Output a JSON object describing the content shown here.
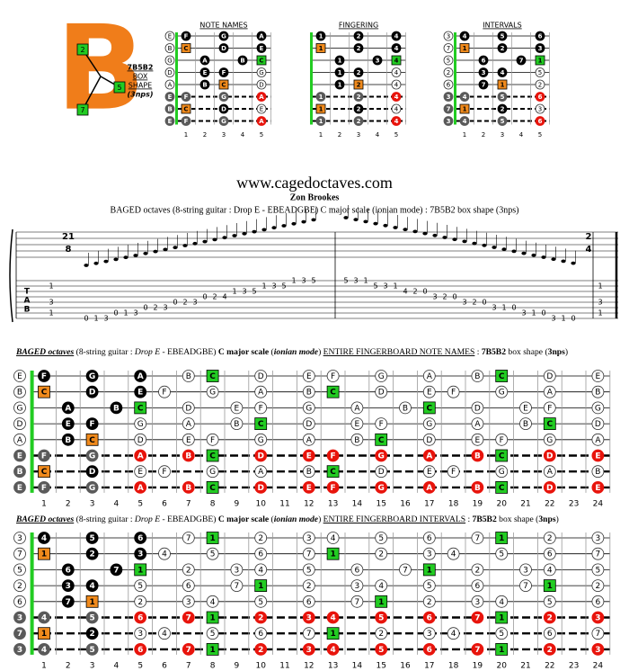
{
  "logo": {
    "letter": "B",
    "squares": [
      "2",
      "5",
      "7"
    ],
    "lines": [
      "7B5B2",
      "BOX",
      "SHAPE",
      "(3nps)"
    ]
  },
  "diagram_titles": [
    "NOTE NAMES",
    "FINGERING",
    "INTERVALS"
  ],
  "diagram_frets": [
    "1",
    "2",
    "3",
    "4",
    "5"
  ],
  "fingering": [
    [
      null,
      "1",
      null,
      "2",
      null,
      "4"
    ],
    [
      null,
      "1",
      null,
      "2",
      null,
      "4"
    ],
    [
      null,
      null,
      "1",
      null,
      "3",
      "4"
    ],
    [
      null,
      null,
      "1",
      "2",
      null,
      "4"
    ],
    [
      null,
      null,
      "1",
      "2",
      null,
      "4"
    ],
    [
      null,
      "1",
      null,
      "2",
      null,
      "4"
    ],
    [
      null,
      "1",
      null,
      "2",
      null,
      "4"
    ],
    [
      null,
      "1",
      null,
      "2",
      null,
      "4"
    ]
  ],
  "site": "www.cagedoctaves.com",
  "author": "Zon Brookes",
  "subtitle": "BAGED octaves (8-string guitar : Drop E - EBEADGBE) C major scale (ionian mode) : 7B5B2 box shape (3nps)",
  "time_signatures": [
    {
      "top": "21",
      "bottom": "8"
    },
    {
      "top": "2",
      "bottom": "4"
    }
  ],
  "tab_label": [
    "T",
    "A",
    "B"
  ],
  "tab_chords": [
    [
      {
        "string": 2,
        "fret": "1"
      },
      {
        "string": 5,
        "fret": "3"
      },
      {
        "string": 7,
        "fret": "1"
      }
    ],
    [
      {
        "string": 2,
        "fret": "1"
      },
      {
        "string": 5,
        "fret": "3"
      },
      {
        "string": 7,
        "fret": "1"
      }
    ]
  ],
  "tab": [
    {
      "string": 8,
      "frets": [
        "0",
        "1",
        "3"
      ]
    },
    {
      "string": 7,
      "frets": [
        "0",
        "1",
        "3"
      ]
    },
    {
      "string": 6,
      "frets": [
        "0",
        "2",
        "3"
      ]
    },
    {
      "string": 5,
      "frets": [
        "0",
        "2",
        "3"
      ]
    },
    {
      "string": 4,
      "frets": [
        "0",
        "2",
        "4"
      ]
    },
    {
      "string": 3,
      "frets": [
        "1",
        "3",
        "5"
      ]
    },
    {
      "string": 2,
      "frets": [
        "1",
        "3",
        "5"
      ]
    },
    {
      "string": 1,
      "frets": [
        "1",
        "3",
        "5"
      ]
    },
    {
      "string": 1,
      "frets": [
        "5",
        "3",
        "1"
      ]
    },
    {
      "string": 2,
      "frets": [
        "5",
        "3",
        "1"
      ]
    },
    {
      "string": 3,
      "frets": [
        "4",
        "2",
        "0"
      ]
    },
    {
      "string": 4,
      "frets": [
        "3",
        "2",
        "0"
      ]
    },
    {
      "string": 5,
      "frets": [
        "3",
        "2",
        "0"
      ]
    },
    {
      "string": 6,
      "frets": [
        "3",
        "1",
        "0"
      ]
    },
    {
      "string": 7,
      "frets": [
        "3",
        "1",
        "0"
      ]
    },
    {
      "string": 8,
      "frets": [
        "3",
        "1",
        "0"
      ]
    }
  ],
  "fret_numbers": [
    "1",
    "2",
    "3",
    "4",
    "5",
    "6",
    "7",
    "8",
    "9",
    "10",
    "11",
    "12",
    "13",
    "14",
    "15",
    "16",
    "17",
    "18",
    "19",
    "20",
    "21",
    "22",
    "23",
    "24"
  ],
  "colors": {
    "w": "#ffffff",
    "b": "#000000",
    "g": "#22cc22",
    "o": "#f08a1c",
    "r": "#e8140c",
    "k": "#5a5a5a"
  },
  "kinds": [
    "wb.b.b.wg.w.ww.w.w.wg.w.w",
    "wo.b.bw.w.w.wg.w.ww.w.w.w",
    "w.b.bg.w.ww.w.w.wg.w.ww.w",
    "w.bb.w.w.wg.w.ww.w.w.wg.w",
    "w.bo.w.ww.w.w.wg.w.ww.w.w",
    "kk.k.r.rg.r.rr.r.r.rg.r.r",
    "ko.b.ww.w.w.wg.w.ww.w.w.w",
    "kk.k.r.rg.r.rr.r.r.rg.r.r"
  ],
  "boards": [
    {
      "title_parts": [
        {
          "text": "BAGED octaves",
          "style": "biu"
        },
        {
          "text": " (8-string guitar : ",
          "style": "n"
        },
        {
          "text": "Drop E",
          "style": "i"
        },
        {
          "text": " - EBEADGBE) ",
          "style": "n"
        },
        {
          "text": "C major scale",
          "style": "b"
        },
        {
          "text": " (",
          "style": "n"
        },
        {
          "text": "ionian mode",
          "style": "bi"
        },
        {
          "text": ") ",
          "style": "n"
        },
        {
          "text": "ENTIRE FINGERBOARD NOTE NAMES",
          "style": "u"
        },
        {
          "text": " : ",
          "style": "n"
        },
        {
          "text": "7B5B2",
          "style": "b"
        },
        {
          "text": " box shape (",
          "style": "n"
        },
        {
          "text": "3nps",
          "style": "b"
        },
        {
          "text": ")",
          "style": "n"
        }
      ],
      "strings": [
        [
          "E",
          "F",
          null,
          "G",
          null,
          "A",
          null,
          "B",
          "C",
          null,
          "D",
          null,
          "E",
          "F",
          null,
          "G",
          null,
          "A",
          null,
          "B",
          "C",
          null,
          "D",
          null,
          "E"
        ],
        [
          "B",
          "C",
          null,
          "D",
          null,
          "E",
          "F",
          null,
          "G",
          null,
          "A",
          null,
          "B",
          "C",
          null,
          "D",
          null,
          "E",
          "F",
          null,
          "G",
          null,
          "A",
          null,
          "B"
        ],
        [
          "G",
          null,
          "A",
          null,
          "B",
          "C",
          null,
          "D",
          null,
          "E",
          "F",
          null,
          "G",
          null,
          "A",
          null,
          "B",
          "C",
          null,
          "D",
          null,
          "E",
          "F",
          null,
          "G"
        ],
        [
          "D",
          null,
          "E",
          "F",
          null,
          "G",
          null,
          "A",
          null,
          "B",
          "C",
          null,
          "D",
          null,
          "E",
          "F",
          null,
          "G",
          null,
          "A",
          null,
          "B",
          "C",
          null,
          "D"
        ],
        [
          "A",
          null,
          "B",
          "C",
          null,
          "D",
          null,
          "E",
          "F",
          null,
          "G",
          null,
          "A",
          null,
          "B",
          "C",
          null,
          "D",
          null,
          "E",
          "F",
          null,
          "G",
          null,
          "A"
        ],
        [
          "E",
          "F",
          null,
          "G",
          null,
          "A",
          null,
          "B",
          "C",
          null,
          "D",
          null,
          "E",
          "F",
          null,
          "G",
          null,
          "A",
          null,
          "B",
          "C",
          null,
          "D",
          null,
          "E"
        ],
        [
          "B",
          "C",
          null,
          "D",
          null,
          "E",
          "F",
          null,
          "G",
          null,
          "A",
          null,
          "B",
          "C",
          null,
          "D",
          null,
          "E",
          "F",
          null,
          "G",
          null,
          "A",
          null,
          "B"
        ],
        [
          "E",
          "F",
          null,
          "G",
          null,
          "A",
          null,
          "B",
          "C",
          null,
          "D",
          null,
          "E",
          "F",
          null,
          "G",
          null,
          "A",
          null,
          "B",
          "C",
          null,
          "D",
          null,
          "E"
        ]
      ]
    },
    {
      "title_parts": [
        {
          "text": "BAGED octaves",
          "style": "biu"
        },
        {
          "text": " (8-string guitar : ",
          "style": "n"
        },
        {
          "text": "Drop E",
          "style": "i"
        },
        {
          "text": " - EBEADGBE) ",
          "style": "n"
        },
        {
          "text": "C major scale",
          "style": "b"
        },
        {
          "text": " (",
          "style": "n"
        },
        {
          "text": "ionian mode",
          "style": "bi"
        },
        {
          "text": ") ",
          "style": "n"
        },
        {
          "text": "ENTIRE FINGERBOARD INTERVALS",
          "style": "u"
        },
        {
          "text": " : ",
          "style": "n"
        },
        {
          "text": "7B5B2",
          "style": "b"
        },
        {
          "text": " box shape (",
          "style": "n"
        },
        {
          "text": "3nps",
          "style": "b"
        },
        {
          "text": ")",
          "style": "n"
        }
      ],
      "strings": [
        [
          "3",
          "4",
          null,
          "5",
          null,
          "6",
          null,
          "7",
          "1",
          null,
          "2",
          null,
          "3",
          "4",
          null,
          "5",
          null,
          "6",
          null,
          "7",
          "1",
          null,
          "2",
          null,
          "3"
        ],
        [
          "7",
          "1",
          null,
          "2",
          null,
          "3",
          "4",
          null,
          "5",
          null,
          "6",
          null,
          "7",
          "1",
          null,
          "2",
          null,
          "3",
          "4",
          null,
          "5",
          null,
          "6",
          null,
          "7"
        ],
        [
          "5",
          null,
          "6",
          null,
          "7",
          "1",
          null,
          "2",
          null,
          "3",
          "4",
          null,
          "5",
          null,
          "6",
          null,
          "7",
          "1",
          null,
          "2",
          null,
          "3",
          "4",
          null,
          "5"
        ],
        [
          "2",
          null,
          "3",
          "4",
          null,
          "5",
          null,
          "6",
          null,
          "7",
          "1",
          null,
          "2",
          null,
          "3",
          "4",
          null,
          "5",
          null,
          "6",
          null,
          "7",
          "1",
          null,
          "2"
        ],
        [
          "6",
          null,
          "7",
          "1",
          null,
          "2",
          null,
          "3",
          "4",
          null,
          "5",
          null,
          "6",
          null,
          "7",
          "1",
          null,
          "2",
          null,
          "3",
          "4",
          null,
          "5",
          null,
          "6"
        ],
        [
          "3",
          "4",
          null,
          "5",
          null,
          "6",
          null,
          "7",
          "1",
          null,
          "2",
          null,
          "3",
          "4",
          null,
          "5",
          null,
          "6",
          null,
          "7",
          "1",
          null,
          "2",
          null,
          "3"
        ],
        [
          "7",
          "1",
          null,
          "2",
          null,
          "3",
          "4",
          null,
          "5",
          null,
          "6",
          null,
          "7",
          "1",
          null,
          "2",
          null,
          "3",
          "4",
          null,
          "5",
          null,
          "6",
          null,
          "7"
        ],
        [
          "3",
          "4",
          null,
          "5",
          null,
          "6",
          null,
          "7",
          "1",
          null,
          "2",
          null,
          "3",
          "4",
          null,
          "5",
          null,
          "6",
          null,
          "7",
          "1",
          null,
          "2",
          null,
          "3"
        ]
      ]
    }
  ]
}
